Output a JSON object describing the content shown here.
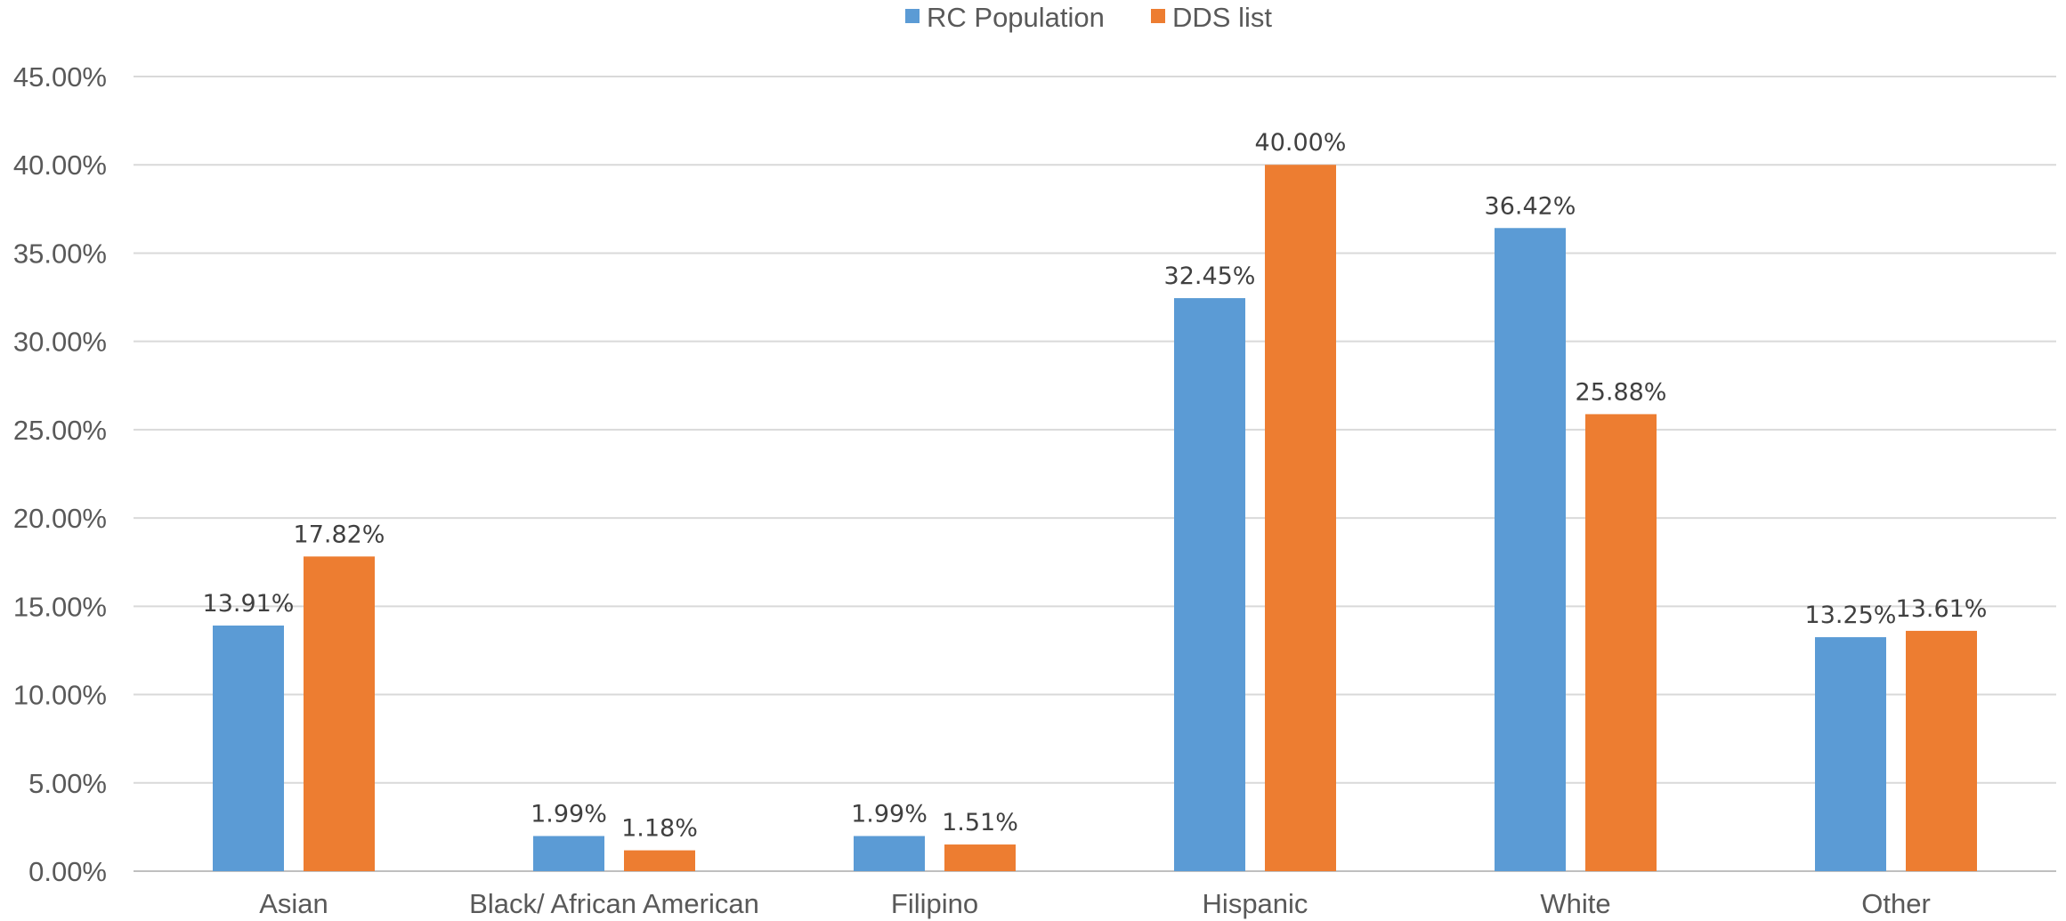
{
  "chart_data": {
    "type": "bar",
    "categories": [
      "Asian",
      "Black/ African American",
      "Filipino",
      "Hispanic",
      "White",
      "Other"
    ],
    "series": [
      {
        "name": "RC Population",
        "color": "#5B9BD5",
        "values": [
          13.91,
          1.99,
          1.99,
          32.45,
          36.42,
          13.25
        ],
        "labels": [
          "13.91%",
          "1.99%",
          "1.99%",
          "32.45%",
          "36.42%",
          "13.25%"
        ]
      },
      {
        "name": "DDS list",
        "color": "#ED7D31",
        "values": [
          17.82,
          1.18,
          1.51,
          40.0,
          25.88,
          13.61
        ],
        "labels": [
          "17.82%",
          "1.18%",
          "1.51%",
          "40.00%",
          "25.88%",
          "13.61%"
        ]
      }
    ],
    "ylim": [
      0,
      45
    ],
    "yticks": [
      0,
      5,
      10,
      15,
      20,
      25,
      30,
      35,
      40,
      45
    ],
    "ytick_labels": [
      "0.00%",
      "5.00%",
      "10.00%",
      "15.00%",
      "20.00%",
      "25.00%",
      "30.00%",
      "35.00%",
      "40.00%",
      "45.00%"
    ],
    "grid": true,
    "legend_position": "top-center",
    "title": "",
    "xlabel": "",
    "ylabel": ""
  }
}
